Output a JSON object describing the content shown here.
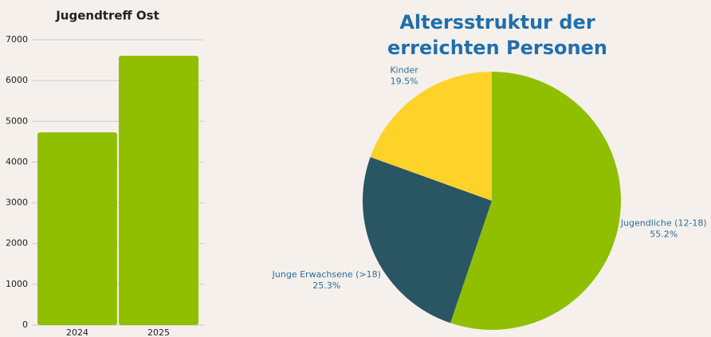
{
  "chart_data": [
    {
      "type": "bar",
      "title": "Jugendtreff Ost",
      "categories": [
        "2024",
        "2025"
      ],
      "values": [
        4730,
        6610
      ],
      "color": "#8fbf00",
      "ylim": [
        0,
        7000
      ],
      "yticks": [
        0,
        1000,
        2000,
        3000,
        4000,
        5000,
        6000,
        7000
      ],
      "grid": true
    },
    {
      "type": "pie",
      "title": "Altersstruktur der erreichten Personen",
      "categories": [
        "Jugendliche (12-18)",
        "Junge Erwachsene (>18)",
        "Kinder"
      ],
      "values": [
        55.2,
        25.3,
        19.5
      ],
      "value_labels": [
        "55.2%",
        "25.3%",
        "19.5%"
      ],
      "colors": [
        "#8fbf00",
        "#2a5563",
        "#fdd32a"
      ]
    }
  ]
}
